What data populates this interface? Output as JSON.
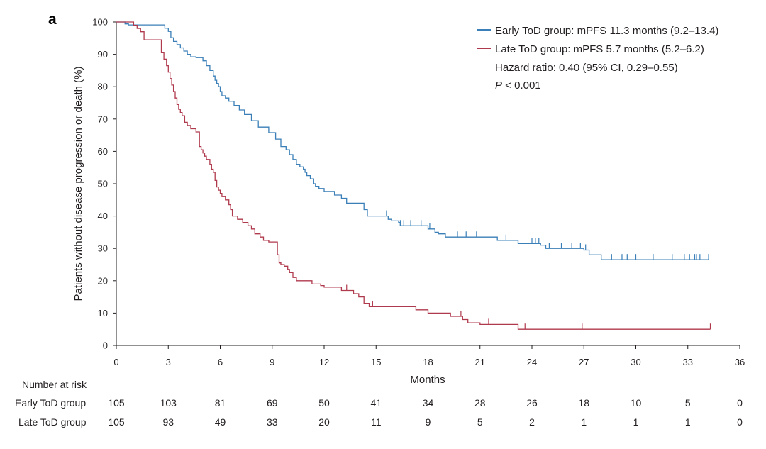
{
  "panel_label": "a",
  "chart_data": {
    "type": "line",
    "step": true,
    "xlabel": "Months",
    "ylabel": "Patients without disease progression or death (%)",
    "xlim": [
      0,
      36
    ],
    "ylim": [
      0,
      100
    ],
    "xticks": [
      0,
      3,
      6,
      9,
      12,
      15,
      18,
      21,
      24,
      27,
      30,
      33,
      36
    ],
    "yticks": [
      0,
      10,
      20,
      30,
      40,
      50,
      60,
      70,
      80,
      90,
      100
    ],
    "grid": false,
    "legend_position": "top-right",
    "series": [
      {
        "name": "Early ToD group: mPFS 11.3 months (9.2–13.4)",
        "color": "#3a7fb7",
        "x": [
          0,
          0.5,
          0.7,
          2.8,
          3.0,
          3.15,
          3.3,
          3.5,
          3.7,
          3.9,
          4.1,
          4.3,
          4.6,
          5.0,
          5.2,
          5.4,
          5.6,
          5.7,
          5.8,
          5.9,
          6.0,
          6.1,
          6.3,
          6.5,
          6.8,
          7.1,
          7.4,
          7.8,
          8.2,
          8.8,
          9.2,
          9.5,
          9.8,
          10.0,
          10.2,
          10.4,
          10.6,
          10.8,
          10.9,
          11.0,
          11.2,
          11.4,
          11.5,
          11.7,
          12.0,
          12.6,
          13.0,
          13.3,
          14.3,
          14.5,
          15.7,
          15.9,
          16.3,
          16.4,
          17.4,
          18.0,
          18.4,
          18.6,
          19.0,
          19.8,
          22.0,
          23.2,
          24.5,
          24.8,
          27.0,
          27.3,
          27.5,
          28.0,
          34.2
        ],
        "y": [
          100,
          99.4,
          99.1,
          98.1,
          97.1,
          95.1,
          94.0,
          93.0,
          92.0,
          91.0,
          90.0,
          89.2,
          89.0,
          88.0,
          86.5,
          85.0,
          83.3,
          82.0,
          81.0,
          80.0,
          78.5,
          77.2,
          76.5,
          75.5,
          74.2,
          72.8,
          71.4,
          69.5,
          67.5,
          65.8,
          63.8,
          61.5,
          60.5,
          59.0,
          57.5,
          56.0,
          55.2,
          54.5,
          53.5,
          52.5,
          51.5,
          50.0,
          49.2,
          48.5,
          47.6,
          46.5,
          45.5,
          44.0,
          42.0,
          40.0,
          39.0,
          38.5,
          38.0,
          37.0,
          37.0,
          36.0,
          35.0,
          34.5,
          33.5,
          33.5,
          32.5,
          31.5,
          31.0,
          30.0,
          29.5,
          28.0,
          28.0,
          26.5,
          26.5
        ],
        "censor_x": [
          15.6,
          16.4,
          16.6,
          17.0,
          17.6,
          18.1,
          19.7,
          20.2,
          20.8,
          22.5,
          24.0,
          24.2,
          24.4,
          25.0,
          25.7,
          26.3,
          26.8,
          27.1,
          28.6,
          29.2,
          29.5,
          30.0,
          31.0,
          32.1,
          32.8,
          33.1,
          33.4,
          33.5,
          33.7,
          34.2
        ]
      },
      {
        "name": "Late ToD group: mPFS 5.7 months (5.2–6.2)",
        "color": "#b03a4d",
        "x": [
          0,
          1.0,
          1.2,
          1.4,
          1.6,
          2.6,
          2.75,
          2.9,
          3.0,
          3.1,
          3.2,
          3.3,
          3.4,
          3.5,
          3.6,
          3.7,
          3.8,
          3.95,
          4.1,
          4.3,
          4.6,
          4.8,
          4.9,
          5.0,
          5.1,
          5.2,
          5.4,
          5.5,
          5.6,
          5.7,
          5.8,
          5.9,
          6.0,
          6.1,
          6.3,
          6.5,
          6.6,
          6.7,
          7.0,
          7.3,
          7.6,
          7.8,
          8.0,
          8.3,
          8.5,
          8.8,
          9.3,
          9.4,
          9.5,
          9.7,
          9.9,
          10.0,
          10.2,
          10.4,
          10.6,
          11.3,
          11.8,
          12.0,
          13.0,
          13.7,
          14.0,
          14.3,
          14.6,
          14.8,
          17.3,
          18.0,
          19.3,
          20.0,
          20.3,
          21.0,
          23.2,
          34.3
        ],
        "y": [
          100,
          99.0,
          98.0,
          97.0,
          94.5,
          90.5,
          88.5,
          86.5,
          84.5,
          82.5,
          80.5,
          78.5,
          76.5,
          74.5,
          73.0,
          72.0,
          71.0,
          69.0,
          68.0,
          67.0,
          66.0,
          61.5,
          60.5,
          59.5,
          58.5,
          57.5,
          56.0,
          54.5,
          53.5,
          51.0,
          49.0,
          48.0,
          47.0,
          46.0,
          45.0,
          43.5,
          42.0,
          40.0,
          39.0,
          38.0,
          37.0,
          36.0,
          34.5,
          33.5,
          32.5,
          32.0,
          28.0,
          25.5,
          25.0,
          24.5,
          23.5,
          22.5,
          21.0,
          20.0,
          20.0,
          19.0,
          18.5,
          18.0,
          17.0,
          16.0,
          15.0,
          13.0,
          12.0,
          12.0,
          11.0,
          10.0,
          9.0,
          8.0,
          7.0,
          6.5,
          5.0,
          5.0
        ],
        "censor_x": [
          13.3,
          14.8,
          19.9,
          21.5,
          23.6,
          26.9,
          34.3
        ]
      }
    ],
    "annotations": [
      {
        "id": "hr",
        "text": "Hazard ratio: 0.40 (95% CI, 0.29–0.55)"
      },
      {
        "id": "p",
        "italic": "P",
        "text": " < 0.001"
      }
    ],
    "risk_table": {
      "title": "Number at risk",
      "times": [
        0,
        3,
        6,
        9,
        12,
        15,
        18,
        21,
        24,
        27,
        30,
        33,
        36
      ],
      "rows": [
        {
          "label": "Early ToD group",
          "values": [
            "105",
            "103",
            "81",
            "69",
            "50",
            "41",
            "34",
            "28",
            "26",
            "18",
            "10",
            "5",
            "0"
          ]
        },
        {
          "label": "Late ToD group",
          "values": [
            "105",
            "93",
            "49",
            "33",
            "20",
            "11",
            "9",
            "5",
            "2",
            "1",
            "1",
            "1",
            "0"
          ]
        }
      ]
    }
  }
}
